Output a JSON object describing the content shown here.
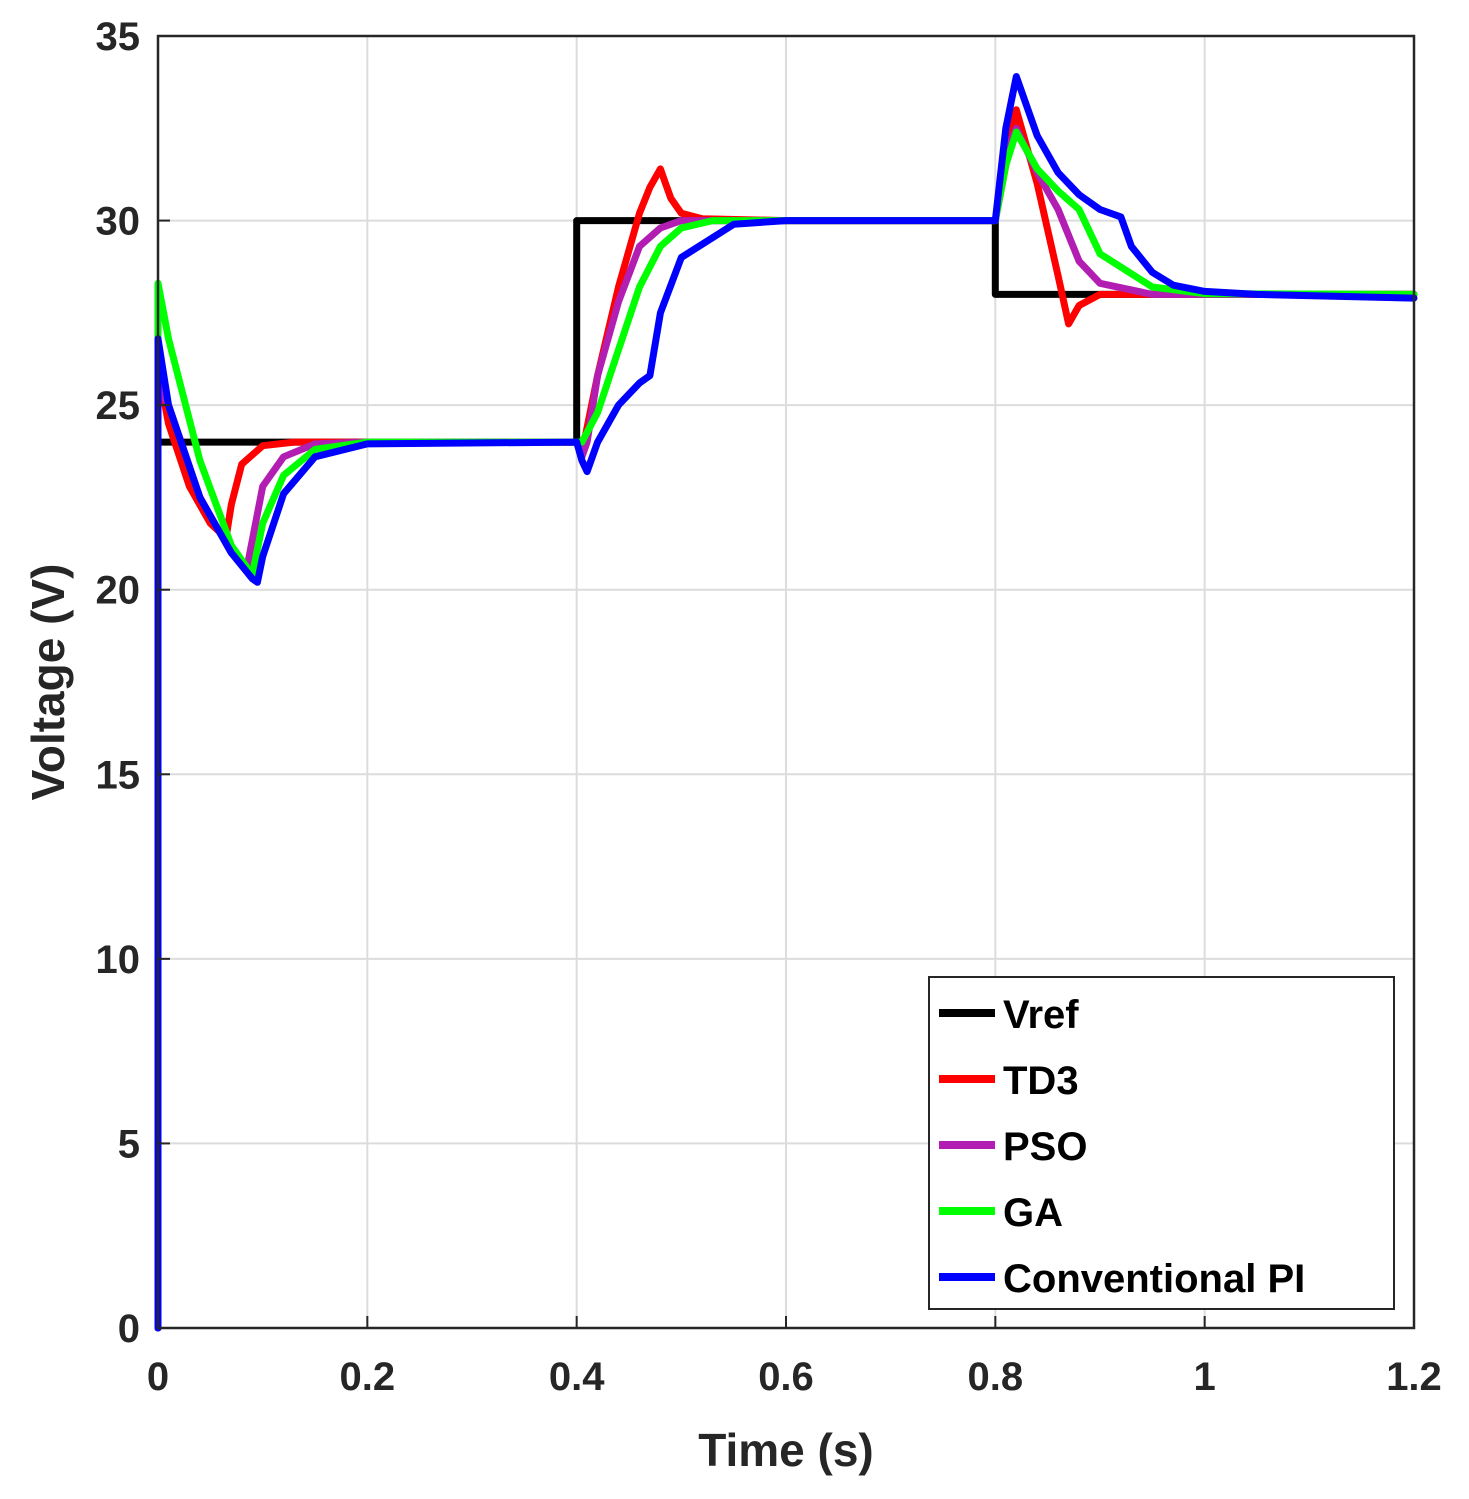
{
  "chart_data": {
    "type": "line",
    "title": "",
    "xlabel": "Time (s)",
    "ylabel": "Voltage (V)",
    "xlim": [
      0,
      1.2
    ],
    "ylim": [
      0,
      35
    ],
    "xticks": [
      0,
      0.2,
      0.4,
      0.6,
      0.8,
      1,
      1.2
    ],
    "xtick_labels": [
      "0",
      "0.2",
      "0.4",
      "0.6",
      "0.8",
      "1",
      "1.2"
    ],
    "yticks": [
      0,
      5,
      10,
      15,
      20,
      25,
      30,
      35
    ],
    "ytick_labels": [
      "0",
      "5",
      "10",
      "15",
      "20",
      "25",
      "30",
      "35"
    ],
    "grid": true,
    "legend_position": "bottom-right",
    "series": [
      {
        "name": "Vref",
        "color": "#000000",
        "x": [
          0,
          0,
          0.4,
          0.4,
          0.8,
          0.8,
          1.2
        ],
        "y": [
          0,
          24,
          24,
          30,
          30,
          28,
          28
        ]
      },
      {
        "name": "TD3",
        "color": "#ff0000",
        "x": [
          0,
          0,
          0.01,
          0.03,
          0.05,
          0.065,
          0.07,
          0.08,
          0.1,
          0.13,
          0.2,
          0.4,
          0.405,
          0.41,
          0.42,
          0.44,
          0.46,
          0.47,
          0.48,
          0.485,
          0.49,
          0.5,
          0.52,
          0.6,
          0.8,
          0.81,
          0.82,
          0.84,
          0.86,
          0.87,
          0.88,
          0.9,
          0.95,
          1.2
        ],
        "y": [
          0,
          26,
          24.5,
          22.8,
          21.8,
          21.4,
          22.3,
          23.4,
          23.9,
          24,
          24,
          24,
          23.7,
          24.4,
          25.8,
          28.2,
          30.2,
          30.9,
          31.4,
          31,
          30.6,
          30.2,
          30.05,
          30,
          30,
          31.5,
          33,
          31,
          28.5,
          27.2,
          27.7,
          28,
          28,
          28
        ]
      },
      {
        "name": "PSO",
        "color": "#b21eb2",
        "x": [
          0,
          0,
          0.01,
          0.04,
          0.07,
          0.085,
          0.1,
          0.12,
          0.15,
          0.2,
          0.4,
          0.405,
          0.41,
          0.42,
          0.44,
          0.46,
          0.48,
          0.5,
          0.55,
          0.8,
          0.81,
          0.82,
          0.84,
          0.86,
          0.88,
          0.9,
          0.95,
          1.2
        ],
        "y": [
          0,
          25.5,
          25,
          22.5,
          21,
          20.6,
          22.8,
          23.6,
          23.95,
          24,
          24,
          23.6,
          24,
          25.8,
          27.8,
          29.3,
          29.8,
          30,
          30,
          30,
          31.8,
          32.5,
          31.3,
          30.3,
          28.9,
          28.3,
          28,
          28
        ]
      },
      {
        "name": "GA",
        "color": "#00ff00",
        "x": [
          0,
          0,
          0.01,
          0.04,
          0.07,
          0.09,
          0.1,
          0.12,
          0.15,
          0.2,
          0.4,
          0.405,
          0.42,
          0.44,
          0.46,
          0.48,
          0.5,
          0.53,
          0.6,
          0.8,
          0.81,
          0.82,
          0.84,
          0.86,
          0.88,
          0.9,
          0.95,
          1,
          1.2
        ],
        "y": [
          0,
          28.3,
          26.8,
          23.5,
          21.2,
          20.4,
          21.8,
          23.1,
          23.8,
          24,
          24,
          24,
          24.8,
          26.5,
          28.2,
          29.3,
          29.8,
          30,
          30,
          30,
          31.5,
          32.4,
          31.4,
          30.8,
          30.3,
          29.1,
          28.2,
          28.02,
          28
        ]
      },
      {
        "name": "Conventional PI",
        "color": "#0000ff",
        "x": [
          0,
          0,
          0.01,
          0.04,
          0.07,
          0.09,
          0.095,
          0.1,
          0.12,
          0.15,
          0.2,
          0.4,
          0.405,
          0.41,
          0.42,
          0.44,
          0.46,
          0.47,
          0.48,
          0.5,
          0.55,
          0.6,
          0.8,
          0.81,
          0.82,
          0.84,
          0.86,
          0.88,
          0.9,
          0.92,
          0.93,
          0.95,
          0.97,
          1,
          1.05,
          1.2
        ],
        "y": [
          0,
          26.8,
          25,
          22.5,
          21,
          20.3,
          20.2,
          20.9,
          22.6,
          23.6,
          23.95,
          24,
          23.5,
          23.2,
          24,
          25,
          25.6,
          25.8,
          27.5,
          29,
          29.9,
          30,
          30,
          32.5,
          33.9,
          32.3,
          31.3,
          30.7,
          30.3,
          30.1,
          29.3,
          28.6,
          28.25,
          28.08,
          28,
          27.9
        ]
      }
    ]
  }
}
